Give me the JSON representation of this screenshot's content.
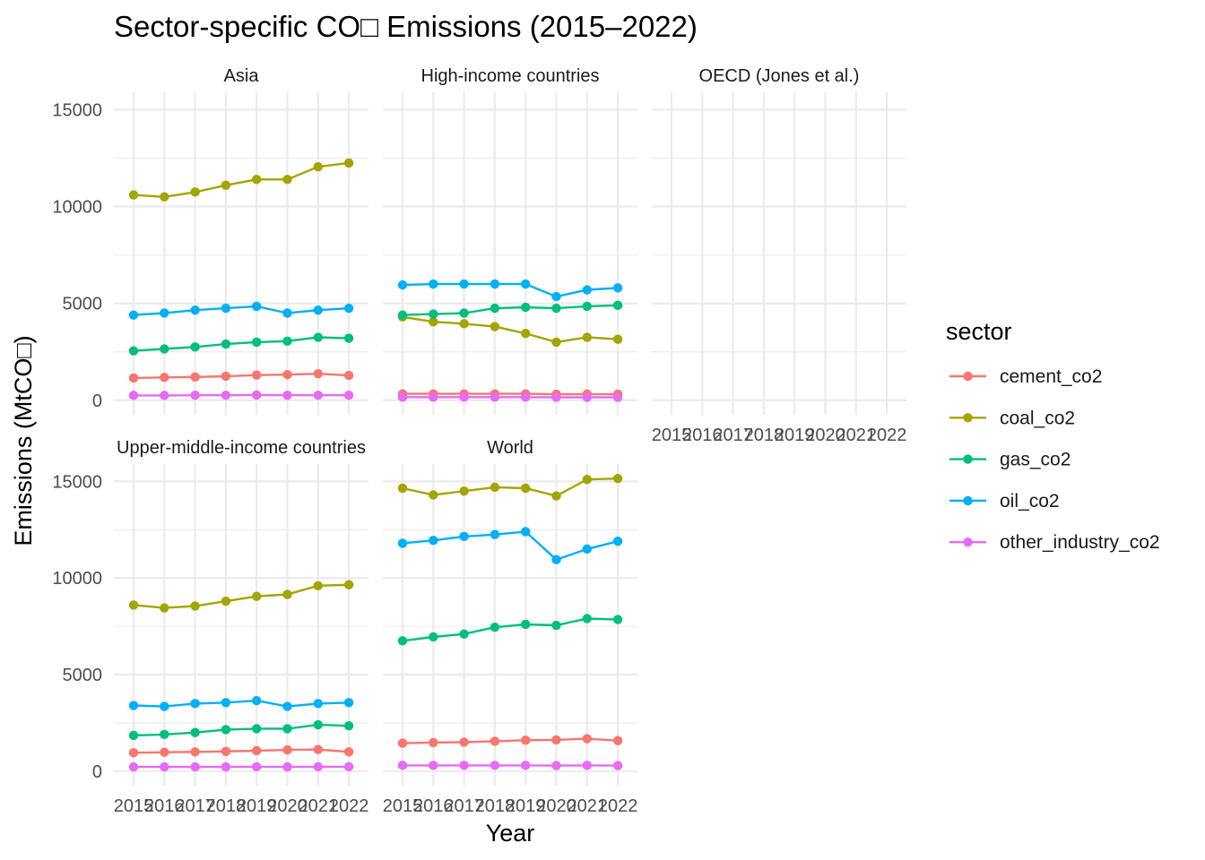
{
  "chart_data": {
    "type": "line",
    "title": "Sector-specific CO□ Emissions (2015–2022)",
    "xlabel": "Year",
    "ylabel": "Emissions (MtCO□)",
    "legend_title": "sector",
    "legend_position": "right",
    "grid": true,
    "x": [
      2015,
      2016,
      2017,
      2018,
      2019,
      2020,
      2021,
      2022
    ],
    "x_tick_labels": [
      "2015",
      "2016",
      "2017",
      "2018",
      "2019",
      "2020",
      "2021",
      "2022"
    ],
    "ylim": [
      0,
      15000
    ],
    "y_ticks": [
      0,
      5000,
      10000,
      15000
    ],
    "y_tick_labels": [
      "0",
      "5000",
      "10000",
      "15000"
    ],
    "sectors": [
      {
        "name": "cement_co2",
        "color": "#F8766D"
      },
      {
        "name": "coal_co2",
        "color": "#A3A500"
      },
      {
        "name": "gas_co2",
        "color": "#00BF7D"
      },
      {
        "name": "oil_co2",
        "color": "#00B0F6"
      },
      {
        "name": "other_industry_co2",
        "color": "#E76BF3"
      }
    ],
    "panels": [
      {
        "strip": "Asia",
        "series": [
          {
            "name": "cement_co2",
            "values": [
              1150,
              1180,
              1200,
              1240,
              1300,
              1320,
              1370,
              1280
            ]
          },
          {
            "name": "coal_co2",
            "values": [
              10600,
              10500,
              10750,
              11100,
              11400,
              11400,
              12050,
              12250
            ]
          },
          {
            "name": "gas_co2",
            "values": [
              2550,
              2650,
              2750,
              2900,
              3000,
              3050,
              3250,
              3200
            ]
          },
          {
            "name": "oil_co2",
            "values": [
              4400,
              4500,
              4650,
              4750,
              4850,
              4500,
              4650,
              4750
            ]
          },
          {
            "name": "other_industry_co2",
            "values": [
              250,
              250,
              260,
              260,
              270,
              260,
              260,
              260
            ]
          }
        ]
      },
      {
        "strip": "High-income countries",
        "series": [
          {
            "name": "cement_co2",
            "values": [
              330,
              330,
              330,
              330,
              330,
              310,
              320,
              310
            ]
          },
          {
            "name": "coal_co2",
            "values": [
              4300,
              4050,
              3950,
              3800,
              3450,
              3000,
              3250,
              3150
            ]
          },
          {
            "name": "gas_co2",
            "values": [
              4400,
              4450,
              4500,
              4750,
              4800,
              4750,
              4850,
              4900
            ]
          },
          {
            "name": "oil_co2",
            "values": [
              5950,
              6000,
              6000,
              6000,
              6000,
              5350,
              5700,
              5800
            ]
          },
          {
            "name": "other_industry_co2",
            "values": [
              160,
              160,
              160,
              160,
              160,
              150,
              150,
              150
            ]
          }
        ]
      },
      {
        "strip": "OECD (Jones et al.)",
        "series": []
      },
      {
        "strip": "Upper-middle-income countries",
        "series": [
          {
            "name": "cement_co2",
            "values": [
              950,
              980,
              1000,
              1020,
              1060,
              1100,
              1120,
              1000
            ]
          },
          {
            "name": "coal_co2",
            "values": [
              8600,
              8450,
              8550,
              8800,
              9050,
              9150,
              9600,
              9650
            ]
          },
          {
            "name": "gas_co2",
            "values": [
              1850,
              1900,
              2000,
              2150,
              2200,
              2200,
              2400,
              2350
            ]
          },
          {
            "name": "oil_co2",
            "values": [
              3400,
              3350,
              3500,
              3550,
              3650,
              3350,
              3500,
              3550
            ]
          },
          {
            "name": "other_industry_co2",
            "values": [
              220,
              220,
              220,
              220,
              230,
              220,
              230,
              230
            ]
          }
        ]
      },
      {
        "strip": "World",
        "series": [
          {
            "name": "cement_co2",
            "values": [
              1450,
              1480,
              1500,
              1550,
              1600,
              1620,
              1680,
              1580
            ]
          },
          {
            "name": "coal_co2",
            "values": [
              14650,
              14300,
              14500,
              14700,
              14650,
              14250,
              15100,
              15150
            ]
          },
          {
            "name": "gas_co2",
            "values": [
              6750,
              6950,
              7100,
              7450,
              7600,
              7550,
              7900,
              7850
            ]
          },
          {
            "name": "oil_co2",
            "values": [
              11800,
              11950,
              12150,
              12250,
              12400,
              10950,
              11500,
              11900
            ]
          },
          {
            "name": "other_industry_co2",
            "values": [
              300,
              300,
              300,
              300,
              300,
              290,
              300,
              290
            ]
          }
        ]
      }
    ]
  }
}
